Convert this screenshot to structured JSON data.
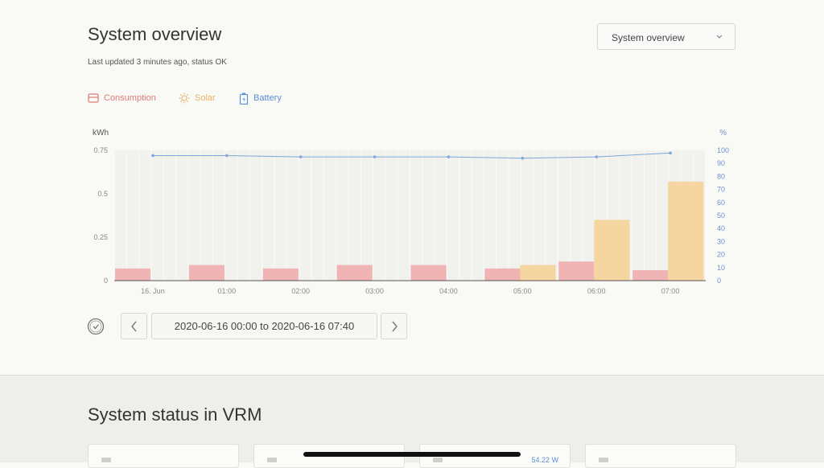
{
  "header": {
    "title": "System overview",
    "subtitle": "Last updated 3 minutes ago, status OK"
  },
  "view_select": {
    "selected": "System overview"
  },
  "legend": {
    "consumption": "Consumption",
    "solar": "Solar",
    "battery": "Battery"
  },
  "colors": {
    "consumption": "#f0b4b4",
    "solar": "#f5d5a0",
    "battery": "#7fa7dd",
    "consumption_text": "#e07a7a",
    "solar_text": "#e8b561",
    "battery_text": "#5b8fd3"
  },
  "chart_data": {
    "type": "bar",
    "left_unit": "kWh",
    "right_unit": "%",
    "left_ticks": [
      "0",
      "0.25",
      "0.5",
      "0.75"
    ],
    "right_ticks": [
      "0",
      "10",
      "20",
      "30",
      "40",
      "50",
      "60",
      "70",
      "80",
      "90",
      "100"
    ],
    "ylim_left": [
      0,
      0.75
    ],
    "ylim_right": [
      0,
      100
    ],
    "categories": [
      "16. Jun",
      "01:00",
      "02:00",
      "03:00",
      "04:00",
      "05:00",
      "06:00",
      "07:00"
    ],
    "series": [
      {
        "name": "Consumption",
        "values": [
          0.07,
          0.09,
          0.07,
          0.09,
          0.09,
          0.07,
          0.11,
          0.06
        ]
      },
      {
        "name": "Solar",
        "values": [
          0,
          0,
          0,
          0,
          0,
          0.09,
          0.35,
          0.57
        ]
      },
      {
        "name": "Battery",
        "values": [
          96,
          96,
          95,
          95,
          95,
          94,
          95,
          98
        ]
      }
    ],
    "grid": true
  },
  "range": {
    "from": "2020-06-16 00:00",
    "separator": "to",
    "to": "2020-06-16 07:40"
  },
  "status": {
    "title": "System status in VRM",
    "card3_value": "54.22 W"
  }
}
